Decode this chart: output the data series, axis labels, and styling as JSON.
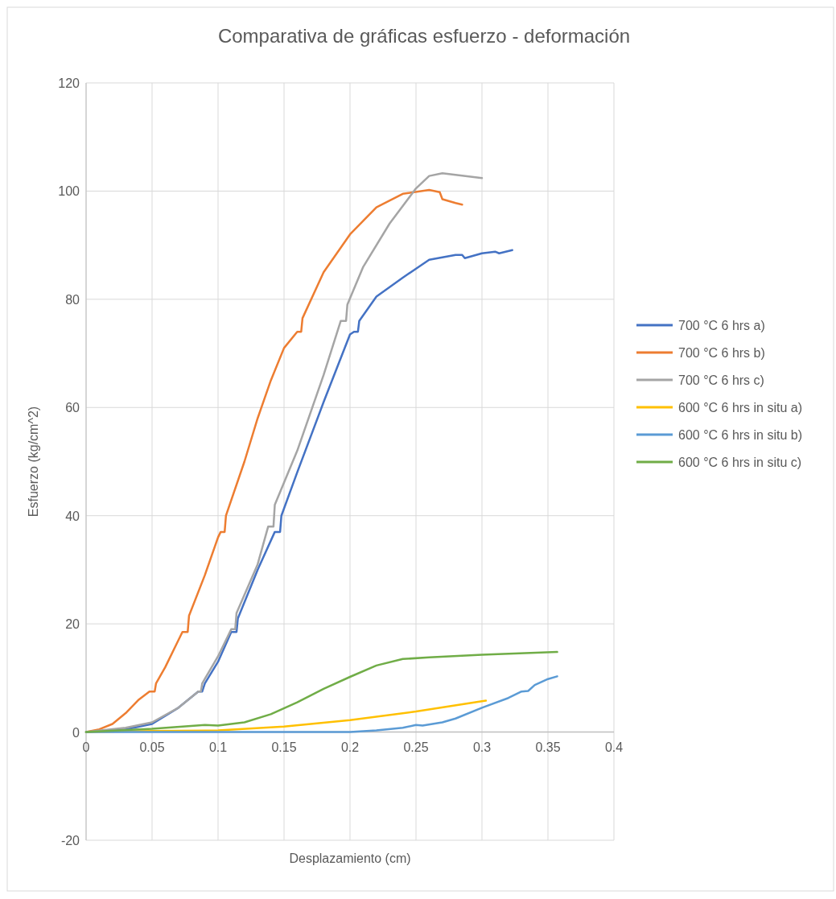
{
  "chart_data": {
    "type": "line",
    "title": "Comparativa de gráficas esfuerzo - deformación",
    "xlabel": "Desplazamiento (cm)",
    "ylabel": "Esfuerzo (kg/cm^2)",
    "xlim": [
      0,
      0.4
    ],
    "xticks": [
      0,
      0.05,
      0.1,
      0.15,
      0.2,
      0.25,
      0.3,
      0.35,
      0.4
    ],
    "ylim": [
      -20,
      120
    ],
    "yticks": [
      -20,
      0,
      20,
      40,
      60,
      80,
      100,
      120
    ],
    "grid": true,
    "legend": "right",
    "marker": "none",
    "line_style": "solid",
    "series": [
      {
        "name": "700 °C 6 hrs a)",
        "color": "#4472c4",
        "x": [
          0,
          0.03,
          0.05,
          0.07,
          0.085,
          0.088,
          0.09,
          0.1,
          0.11,
          0.114,
          0.115,
          0.13,
          0.143,
          0.147,
          0.148,
          0.16,
          0.18,
          0.2,
          0.203,
          0.206,
          0.207,
          0.22,
          0.24,
          0.26,
          0.28,
          0.285,
          0.287,
          0.3,
          0.31,
          0.313,
          0.323
        ],
        "values": [
          0,
          0.5,
          1.5,
          4.5,
          7.5,
          7.5,
          9,
          13,
          18.5,
          18.5,
          21,
          30,
          37,
          37,
          40,
          48,
          61,
          73.5,
          74,
          74,
          76,
          80.5,
          84,
          87.3,
          88.2,
          88.2,
          87.6,
          88.5,
          88.8,
          88.5,
          89.1
        ]
      },
      {
        "name": "700 °C 6 hrs b)",
        "color": "#ed7d31",
        "x": [
          0,
          0.01,
          0.02,
          0.03,
          0.04,
          0.048,
          0.052,
          0.053,
          0.06,
          0.07,
          0.073,
          0.077,
          0.078,
          0.09,
          0.1,
          0.102,
          0.105,
          0.106,
          0.12,
          0.13,
          0.14,
          0.15,
          0.16,
          0.163,
          0.164,
          0.18,
          0.2,
          0.22,
          0.24,
          0.26,
          0.268,
          0.27,
          0.28,
          0.285
        ],
        "values": [
          0,
          0.5,
          1.5,
          3.5,
          6,
          7.5,
          7.5,
          9,
          12,
          17,
          18.5,
          18.5,
          21.5,
          29,
          36,
          37,
          37,
          40,
          50,
          58,
          65,
          71,
          74,
          74,
          76.5,
          85,
          92,
          97,
          99.5,
          100.2,
          99.8,
          98.5,
          97.8,
          97.5
        ]
      },
      {
        "name": "700 °C 6 hrs c)",
        "color": "#a5a5a5",
        "x": [
          0,
          0.03,
          0.05,
          0.07,
          0.085,
          0.087,
          0.088,
          0.1,
          0.11,
          0.113,
          0.114,
          0.13,
          0.138,
          0.142,
          0.143,
          0.16,
          0.18,
          0.193,
          0.197,
          0.198,
          0.21,
          0.23,
          0.25,
          0.26,
          0.27,
          0.28,
          0.3
        ],
        "values": [
          0,
          0.8,
          1.8,
          4.5,
          7.5,
          7.5,
          9,
          14,
          19,
          19,
          22,
          31,
          38,
          38,
          42,
          52,
          66,
          76,
          76,
          79,
          86,
          94,
          100.5,
          102.8,
          103.3,
          103,
          102.4
        ]
      },
      {
        "name": "600 °C 6 hrs in situ a)",
        "color": "#ffc000",
        "x": [
          0,
          0.05,
          0.1,
          0.15,
          0.2,
          0.25,
          0.3,
          0.303
        ],
        "values": [
          0,
          0.2,
          0.3,
          1,
          2.2,
          3.8,
          5.7,
          5.8
        ]
      },
      {
        "name": "600 °C 6 hrs in situ b)",
        "color": "#5b9bd5",
        "x": [
          0,
          0.1,
          0.2,
          0.22,
          0.24,
          0.25,
          0.255,
          0.27,
          0.28,
          0.3,
          0.32,
          0.33,
          0.335,
          0.34,
          0.35,
          0.357
        ],
        "values": [
          0,
          0,
          0,
          0.3,
          0.8,
          1.3,
          1.2,
          1.8,
          2.5,
          4.5,
          6.3,
          7.5,
          7.6,
          8.7,
          9.8,
          10.3
        ]
      },
      {
        "name": "600 °C 6 hrs in situ c)",
        "color": "#70ad47",
        "x": [
          0,
          0.05,
          0.09,
          0.1,
          0.12,
          0.14,
          0.16,
          0.18,
          0.2,
          0.22,
          0.24,
          0.26,
          0.3,
          0.357
        ],
        "values": [
          0,
          0.6,
          1.3,
          1.2,
          1.8,
          3.3,
          5.5,
          8,
          10.2,
          12.3,
          13.5,
          13.8,
          14.3,
          14.8
        ]
      }
    ]
  }
}
